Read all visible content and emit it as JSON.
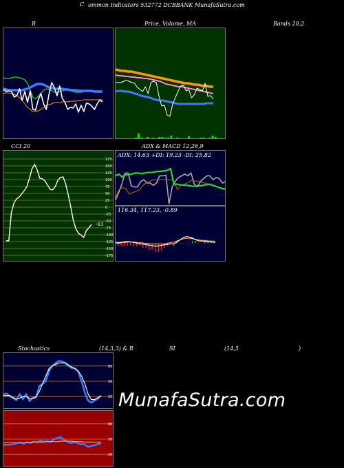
{
  "header": {
    "left": "C",
    "title": "ommon  Indicators  532772  DCBBANK  MunafaSutra.com"
  },
  "labels": {
    "bollinger_b": "B",
    "price_ma": "Price,  Volume,  MA",
    "bands": "Bands 20,2",
    "cci": "CCI 20",
    "adx_macd": "ADX  &  MACD 12,26,9",
    "adx_values": "ADX: 14.63  +DI: 19.23 -DI: 25.82",
    "macd_values": "116.34,  117.23,  -0.89",
    "stoch_title": "Stochastics",
    "stoch_params": "(14,3,3) & R",
    "rsi_a": "SI",
    "rsi_b": "(14,5",
    "rsi_c": ")"
  },
  "watermark": "MunafaSutra.com",
  "colors": {
    "navy_bg": "#000033",
    "green_bg": "#003300",
    "red_bg": "#990000",
    "blue_line": "#3a7bff",
    "orange_line": "#ff9900",
    "green_line": "#22dd22"
  },
  "chart_data": [
    {
      "id": "bollinger",
      "type": "line",
      "series": [
        {
          "role": "upper",
          "values": [
            72,
            73,
            73,
            72,
            71,
            71,
            72,
            73,
            75,
            80,
            90,
            100,
            103,
            99,
            94,
            90,
            88,
            89,
            91,
            93,
            93,
            92,
            91,
            90,
            90,
            91,
            92,
            93,
            93,
            93,
            92,
            92,
            92,
            92,
            92,
            93,
            93,
            93
          ]
        },
        {
          "role": "middle",
          "values": [
            88,
            89,
            90,
            90,
            90,
            90,
            90,
            90,
            89,
            88,
            86,
            84,
            82,
            81,
            81,
            82,
            84,
            86,
            87,
            88,
            88,
            88,
            88,
            89,
            89,
            90,
            90,
            90,
            91,
            91,
            91,
            91,
            91,
            91,
            92,
            92,
            92,
            92
          ]
        },
        {
          "role": "lower",
          "values": [
            95,
            94,
            94,
            95,
            96,
            98,
            101,
            105,
            110,
            115,
            118,
            121,
            121,
            120,
            118,
            115,
            112,
            111,
            110,
            108,
            108,
            108,
            107,
            107,
            107,
            106,
            106,
            106,
            105,
            105,
            104,
            104,
            104,
            104,
            104,
            104,
            104,
            104
          ]
        },
        {
          "role": "price",
          "values": [
            89,
            92,
            91,
            92,
            100,
            98,
            88,
            105,
            92,
            108,
            91,
            118,
            119,
            104,
            95,
            110,
            118,
            96,
            79,
            86,
            98,
            84,
            102,
            108,
            118,
            115,
            116,
            110,
            122,
            112,
            121,
            109,
            110,
            113,
            118,
            110,
            104,
            107
          ]
        }
      ]
    },
    {
      "id": "price_ma",
      "type": "line",
      "series": [
        {
          "role": "ma_long",
          "values": [
            60,
            61,
            62,
            62,
            63,
            63,
            64,
            65,
            66,
            67,
            68,
            69,
            70,
            71,
            72,
            73,
            74,
            75,
            76,
            77,
            78,
            79,
            80,
            80,
            81,
            82,
            82,
            83,
            84,
            84,
            85,
            85
          ]
        },
        {
          "role": "ma_mid",
          "values": [
            68,
            69,
            69,
            70,
            70,
            71,
            71,
            72,
            72,
            73,
            73,
            74,
            75,
            76,
            77,
            79,
            81,
            82,
            83,
            84,
            85,
            85,
            86,
            87,
            88,
            89,
            90,
            91,
            92,
            93,
            94,
            95
          ]
        },
        {
          "role": "price",
          "values": [
            79,
            79,
            79,
            77,
            76,
            77,
            79,
            80,
            86,
            89,
            92,
            85,
            95,
            79,
            77,
            79,
            99,
            113,
            112,
            126,
            128,
            111,
            101,
            92,
            84,
            83,
            91,
            89,
            101,
            97,
            87,
            89,
            91,
            80,
            99,
            98,
            103
          ]
        },
        {
          "role": "ma_short",
          "values": [
            92,
            91,
            91,
            92,
            92,
            93,
            95,
            96,
            98,
            99,
            100,
            101,
            103,
            104,
            105,
            105,
            106,
            107,
            108,
            109,
            110,
            110,
            110,
            110,
            110,
            110,
            110,
            110,
            110,
            109,
            109,
            109
          ]
        }
      ],
      "volume": [
        1,
        1,
        0,
        0,
        1,
        1,
        2,
        8,
        2,
        1,
        3,
        1,
        2,
        1,
        3,
        3,
        2,
        2,
        5,
        1,
        2,
        1,
        1,
        0,
        4,
        1,
        1,
        1,
        2,
        2,
        1,
        2,
        5,
        3
      ]
    },
    {
      "id": "cci",
      "type": "line",
      "yticks": [
        175,
        150,
        125,
        100,
        75,
        50,
        25,
        0,
        -25,
        -50,
        -75,
        -100,
        -125,
        -150,
        -175
      ],
      "ylim": [
        -175,
        175
      ],
      "last_value": -63,
      "values": [
        -122,
        -122,
        -20,
        15,
        30,
        37,
        48,
        60,
        75,
        105,
        140,
        155,
        135,
        105,
        103,
        95,
        80,
        65,
        63,
        75,
        98,
        108,
        110,
        85,
        45,
        0,
        -50,
        -80,
        -95,
        -102,
        -110,
        -85,
        -75,
        -63
      ]
    },
    {
      "id": "adx",
      "type": "line",
      "series": [
        {
          "role": "adx",
          "values": [
            83,
            70,
            66,
            68,
            78,
            75,
            73,
            70,
            62,
            57,
            55,
            52,
            52,
            52,
            52,
            52,
            52,
            55,
            70,
            62,
            60,
            57,
            53,
            54,
            55,
            57,
            58,
            60,
            62,
            64,
            66,
            68,
            70
          ]
        },
        {
          "role": "plus_di",
          "values": [
            45,
            42,
            47,
            43,
            43,
            42,
            40,
            40,
            41,
            40,
            39,
            39,
            38,
            37,
            37,
            36,
            35,
            32,
            60,
            60,
            61,
            62,
            62,
            63,
            64,
            63,
            63,
            62,
            61,
            60,
            62,
            64,
            66,
            68,
            68
          ]
        },
        {
          "role": "minus_di",
          "values": [
            88,
            75,
            60,
            40,
            40,
            63,
            65,
            65,
            55,
            52,
            58,
            58,
            62,
            58,
            45,
            45,
            44,
            95,
            65,
            55,
            48,
            45,
            42,
            45,
            40,
            60,
            65,
            55,
            50,
            45,
            45,
            52,
            48,
            50,
            58,
            55
          ]
        }
      ]
    },
    {
      "id": "macd",
      "type": "line",
      "series": [
        {
          "role": "macd",
          "values": [
            64,
            65,
            64,
            63,
            63,
            64,
            65,
            66,
            67,
            68,
            69,
            70,
            71,
            71,
            70,
            69,
            68,
            67,
            67,
            64,
            60,
            56,
            54,
            55,
            57,
            60,
            62,
            62,
            63,
            63,
            64,
            64
          ]
        },
        {
          "role": "signal",
          "values": [
            66,
            66,
            65,
            65,
            64,
            64,
            64,
            65,
            65,
            66,
            66,
            67,
            67,
            67,
            67,
            67,
            66,
            65,
            64,
            62,
            60,
            58,
            57,
            57,
            58,
            59,
            60,
            61,
            61,
            62,
            62,
            63
          ]
        }
      ],
      "histogram": [
        -1,
        -1,
        -1,
        -1,
        -1,
        -1,
        -1,
        -1,
        -2,
        -2,
        -3,
        -3,
        -4,
        -4,
        -3,
        -2,
        -1,
        0,
        -1,
        1,
        0,
        0,
        0,
        0,
        1,
        1,
        0,
        0,
        1,
        1,
        1,
        1
      ]
    },
    {
      "id": "stochastics",
      "type": "line",
      "yticks": [
        80,
        50,
        20
      ],
      "ylim": [
        0,
        100
      ],
      "series": [
        {
          "role": "k",
          "values": [
            25,
            26,
            20,
            17,
            13,
            25,
            15,
            25,
            11,
            18,
            18,
            40,
            45,
            50,
            70,
            80,
            86,
            90,
            89,
            86,
            80,
            76,
            75,
            68,
            50,
            28,
            12,
            8,
            12,
            16,
            22
          ]
        },
        {
          "role": "d",
          "values": [
            22,
            22,
            22,
            18,
            15,
            17,
            20,
            20,
            16,
            16,
            20,
            30,
            45,
            60,
            75,
            80,
            83,
            86,
            86,
            86,
            82,
            78,
            75,
            70,
            60,
            45,
            25,
            14,
            14,
            18,
            21
          ]
        }
      ]
    },
    {
      "id": "rsi",
      "type": "line",
      "yticks": [
        80,
        50,
        20
      ],
      "ylim": [
        0,
        100
      ],
      "series": [
        {
          "role": "rsi",
          "values": [
            38,
            39,
            39,
            40,
            42,
            43,
            41,
            44,
            42,
            45,
            44,
            47,
            45,
            46,
            44,
            50,
            52,
            54,
            48,
            45,
            42,
            44,
            42,
            40,
            40,
            35,
            36,
            38,
            40,
            42
          ]
        },
        {
          "role": "avg",
          "values": [
            43,
            43,
            43,
            43,
            43,
            43,
            43,
            43,
            44,
            44,
            44,
            44,
            44,
            45,
            45,
            45,
            45,
            46,
            46,
            46,
            46,
            45,
            45,
            45,
            44,
            44,
            44,
            44,
            44,
            44
          ]
        }
      ]
    }
  ]
}
